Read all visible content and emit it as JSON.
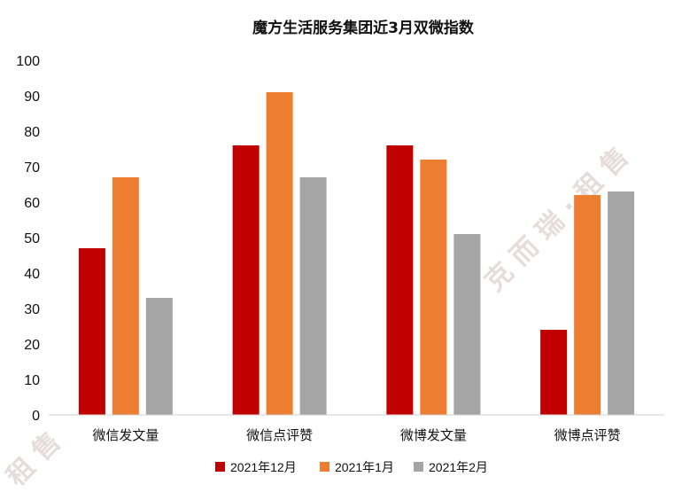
{
  "chart_data": {
    "type": "bar",
    "title": "魔方生活服务集团近3月双微指数",
    "categories": [
      "微信发文量",
      "微信点评赞",
      "微博发文量",
      "微博点评赞"
    ],
    "series": [
      {
        "name": "2021年12月",
        "color": "#c00000",
        "values": [
          47,
          76,
          76,
          24
        ]
      },
      {
        "name": "2021年1月",
        "color": "#ed7d31",
        "values": [
          67,
          91,
          72,
          62
        ]
      },
      {
        "name": "2021年2月",
        "color": "#a5a5a5",
        "values": [
          33,
          67,
          51,
          63
        ]
      }
    ],
    "ylim": [
      0,
      100
    ],
    "yticks": [
      0,
      10,
      20,
      30,
      40,
      50,
      60,
      70,
      80,
      90,
      100
    ],
    "grid": false,
    "legend_position": "bottom"
  }
}
